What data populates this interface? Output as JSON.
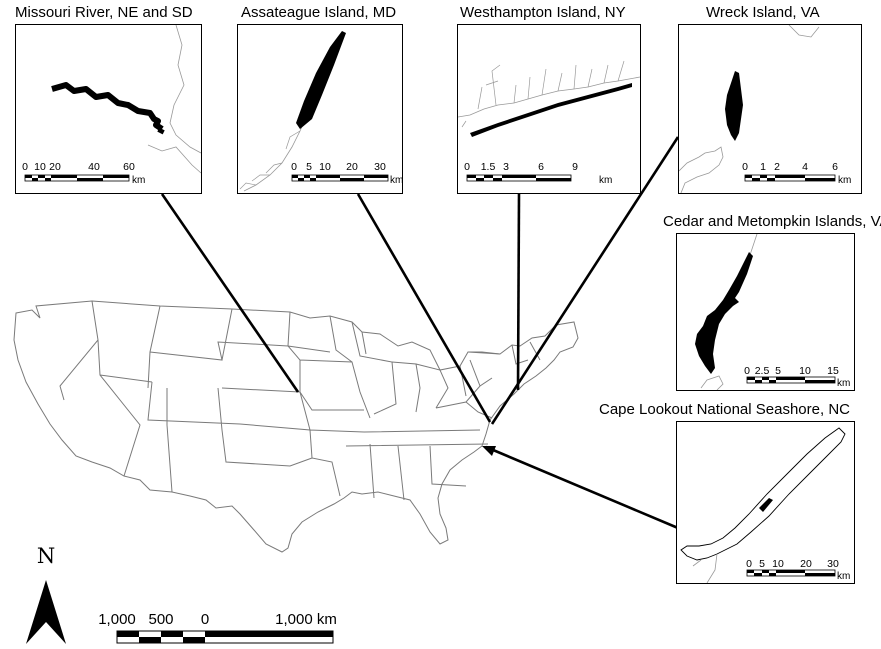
{
  "insets": [
    {
      "title": "Missouri River, NE and SD",
      "scale_ticks": [
        "0",
        "10",
        "20",
        "40",
        "60"
      ],
      "unit": "km"
    },
    {
      "title": "Assateague Island, MD",
      "scale_ticks": [
        "0",
        "5",
        "10",
        "20",
        "30"
      ],
      "unit": "km"
    },
    {
      "title": "Westhampton Island, NY",
      "scale_ticks": [
        "0",
        "1.5",
        "3",
        "6",
        "9"
      ],
      "unit": "km"
    },
    {
      "title": "Wreck Island, VA",
      "scale_ticks": [
        "0",
        "1",
        "2",
        "4",
        "6"
      ],
      "unit": "km"
    },
    {
      "title": "Cedar and Metompkin Islands, VA",
      "scale_ticks": [
        "0",
        "2.5",
        "5",
        "10",
        "15"
      ],
      "unit": "km"
    },
    {
      "title": "Cape Lookout National Seashore, NC",
      "scale_ticks": [
        "0",
        "5",
        "10",
        "20",
        "30"
      ],
      "unit": "km"
    }
  ],
  "main_map": {
    "north_label": "N",
    "scale_ticks": [
      "1,000",
      "500",
      "0",
      "1,000 km"
    ]
  },
  "colors": {
    "outline": "#000000",
    "state_lines": "#888888",
    "feature_fill": "#000000"
  }
}
